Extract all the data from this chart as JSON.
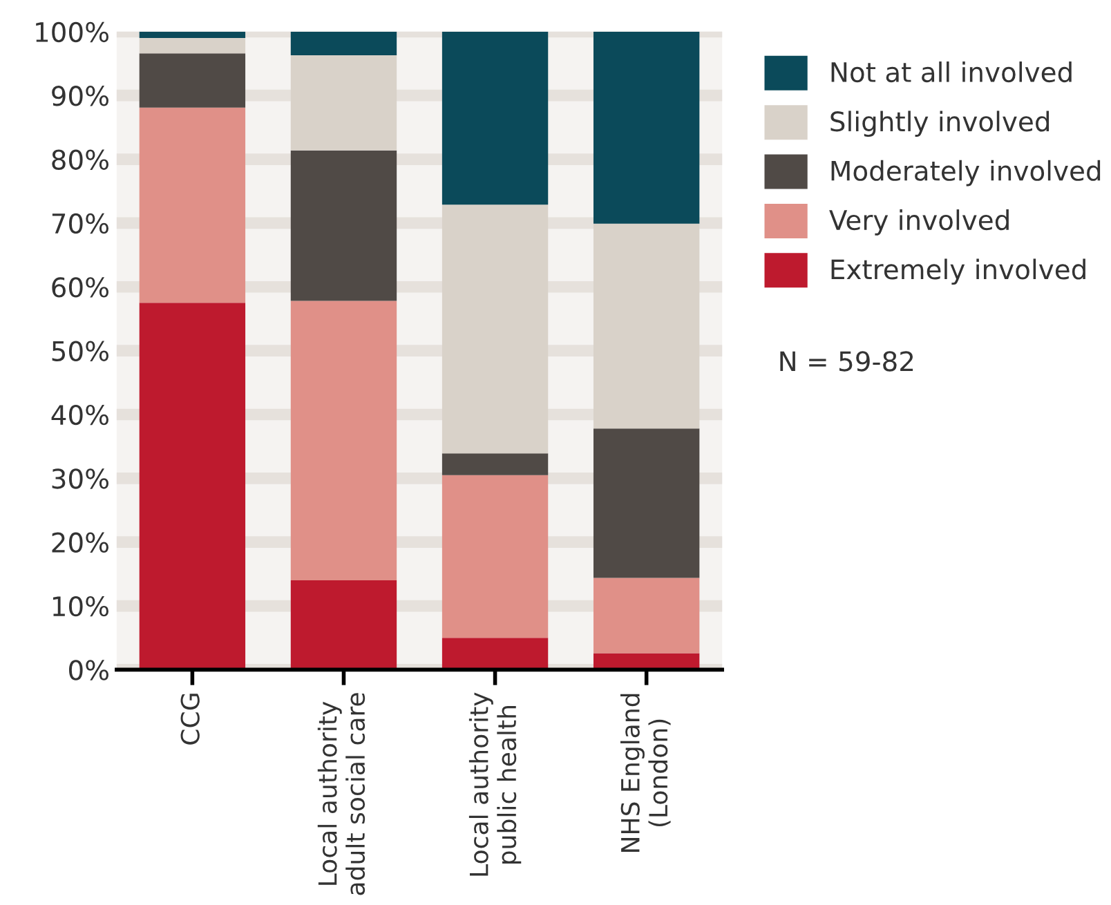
{
  "chart_data": {
    "type": "bar",
    "stacked": true,
    "categories": [
      "CCG",
      "Local authority\nadult social care",
      "Local authority\npublic health",
      "NHS England\n(London)"
    ],
    "series": [
      {
        "name": "Extremely involved",
        "color": "#be1a2e",
        "values": [
          57.5,
          14,
          5,
          2.6
        ]
      },
      {
        "name": "Very involved",
        "color": "#e09088",
        "values": [
          30.6,
          43.8,
          25.5,
          11.8
        ]
      },
      {
        "name": "Moderately involved",
        "color": "#504a46",
        "values": [
          8.5,
          23.6,
          3.4,
          23.4
        ]
      },
      {
        "name": "Slightly involved",
        "color": "#d9d2c9",
        "values": [
          2.4,
          14.9,
          39,
          32.1
        ]
      },
      {
        "name": "Not at all involved",
        "color": "#0b4a5a",
        "values": [
          1,
          3.7,
          27.1,
          30.1
        ]
      }
    ],
    "ylim": [
      0,
      100
    ],
    "yticks": [
      {
        "value": 0,
        "label": "0%"
      },
      {
        "value": 10,
        "label": "10%"
      },
      {
        "value": 20,
        "label": "20%"
      },
      {
        "value": 30,
        "label": "30%"
      },
      {
        "value": 40,
        "label": "40%"
      },
      {
        "value": 50,
        "label": "50%"
      },
      {
        "value": 60,
        "label": "60%"
      },
      {
        "value": 70,
        "label": "70%"
      },
      {
        "value": 80,
        "label": "80%"
      },
      {
        "value": 90,
        "label": "90%"
      },
      {
        "value": 100,
        "label": "100%"
      }
    ],
    "grid": "y",
    "legend": "right",
    "annotations": [
      "N = 59-82"
    ]
  }
}
